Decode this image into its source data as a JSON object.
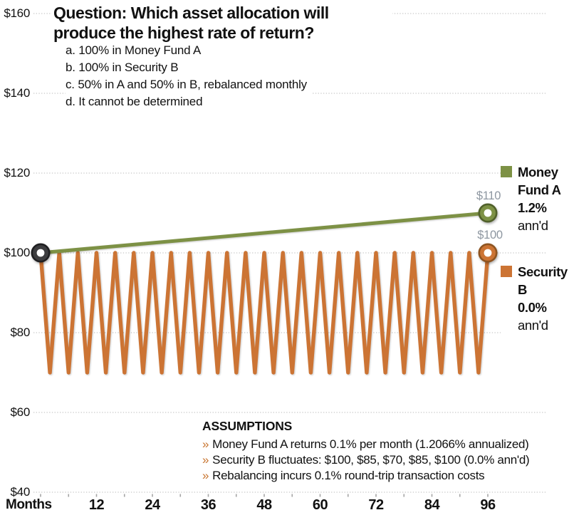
{
  "question": {
    "title_line1": "Question: Which asset allocation will",
    "title_line2": "produce the highest rate of return?",
    "options": [
      "a. 100% in Money Fund A",
      "b. 100% in Security B",
      "c. 50% in A and 50% in B, rebalanced monthly",
      "d. It cannot be determined"
    ]
  },
  "legend": {
    "money_fund": {
      "lines": [
        "Money",
        "Fund A",
        "1.2%",
        "ann'd"
      ],
      "color": "#7d9145"
    },
    "security": {
      "lines": [
        "Security",
        "B",
        "0.0%",
        "ann'd"
      ],
      "color": "#cc7434"
    }
  },
  "assumptions": {
    "heading": "ASSUMPTIONS",
    "bullet_glyph": "»",
    "bullets": [
      "Money Fund A returns 0.1% per month (1.2066% annualized)",
      "Security B fluctuates: $100, $85, $70, $85, $100 (0.0% ann'd)",
      "Rebalancing incurs 0.1% round-trip transaction costs"
    ]
  },
  "axis": {
    "x_title": "Months"
  },
  "colors": {
    "money_green": "#7d9145",
    "money_green_edge": "#50602a",
    "security_orange": "#cc7434",
    "security_orange_edge": "#8e5420",
    "start_marker": "#3d3d3f",
    "start_marker_edge": "#1f1f21",
    "gridline": "#c6c6c6",
    "tick": "#a5a5a5",
    "annotation_gray": "#8e97a1",
    "chevron_orange": "#c8742e"
  },
  "chart_data": {
    "type": "line",
    "x_unit": "months",
    "x_range": [
      0,
      96
    ],
    "x_tick_labels": [
      12,
      24,
      36,
      48,
      60,
      72,
      84,
      96
    ],
    "x_minor_tick_step": 6,
    "y_ticks": [
      160,
      140,
      120,
      100,
      80,
      60,
      40
    ],
    "y_tick_prefix": "$",
    "ylim": [
      40,
      160
    ],
    "grid": "dotted-horizontal",
    "legend_position": "right",
    "series": [
      {
        "name": "Money Fund A",
        "rate_label": "1.2% ann'd",
        "monthly_return_pct": 0.1,
        "color": "#7d9145",
        "points": [
          [
            0,
            100
          ],
          [
            96,
            110
          ]
        ],
        "end_label": "$110"
      },
      {
        "name": "Security B",
        "rate_label": "0.0% ann'd",
        "color": "#cc7434",
        "repeat_pattern": [
          100,
          85,
          70,
          85
        ],
        "period_months": 4,
        "months": 96,
        "end_label": "$100"
      }
    ],
    "start_marker": {
      "month": 0,
      "value": 100
    }
  }
}
